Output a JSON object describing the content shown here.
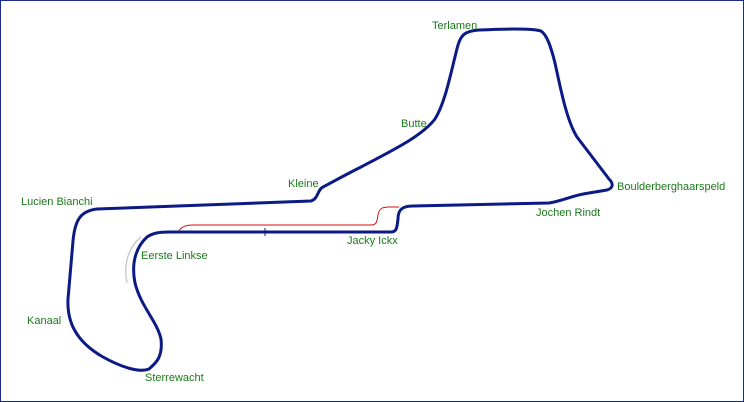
{
  "colors": {
    "border": "#1a2a8f",
    "track": "#0b1a85",
    "pit_lane": "#cc1111",
    "runoff": "#bfbfbf",
    "labels": "#1a7a1a",
    "background": "#ffffff"
  },
  "corners": {
    "terlamen": "Terlamen",
    "butte": "Butte",
    "kleine": "Kleine",
    "lucien_bianchi": "Lucien Bianchi",
    "boulderberghaarspeld": "Boulderberghaarspeld",
    "jochen_rindt": "Jochen Rindt",
    "jacky_ickx": "Jacky Ickx",
    "eerste_linkse": "Eerste Linkse",
    "kanaal": "Kanaal",
    "sterrewacht": "Sterrewacht"
  }
}
